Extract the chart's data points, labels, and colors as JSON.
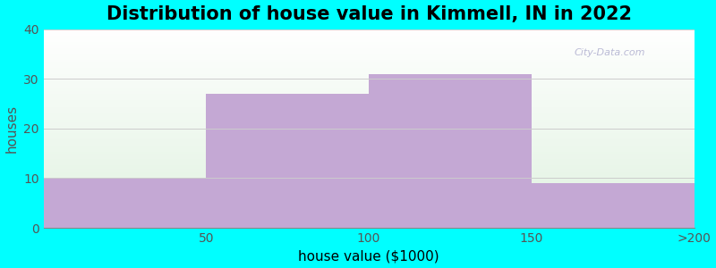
{
  "title": "Distribution of house value in Kimmell, IN in 2022",
  "xlabel": "house value ($1000)",
  "ylabel": "houses",
  "categories": [
    "50",
    "100",
    "150",
    ">200"
  ],
  "values": [
    10,
    27,
    31,
    9
  ],
  "bar_color": "#C4A8D4",
  "ylim": [
    0,
    40
  ],
  "yticks": [
    0,
    10,
    20,
    30,
    40
  ],
  "background_color": "#00FFFF",
  "title_fontsize": 15,
  "axis_fontsize": 11,
  "tick_fontsize": 10,
  "bar_edges": [
    0,
    1,
    2,
    3,
    4
  ]
}
